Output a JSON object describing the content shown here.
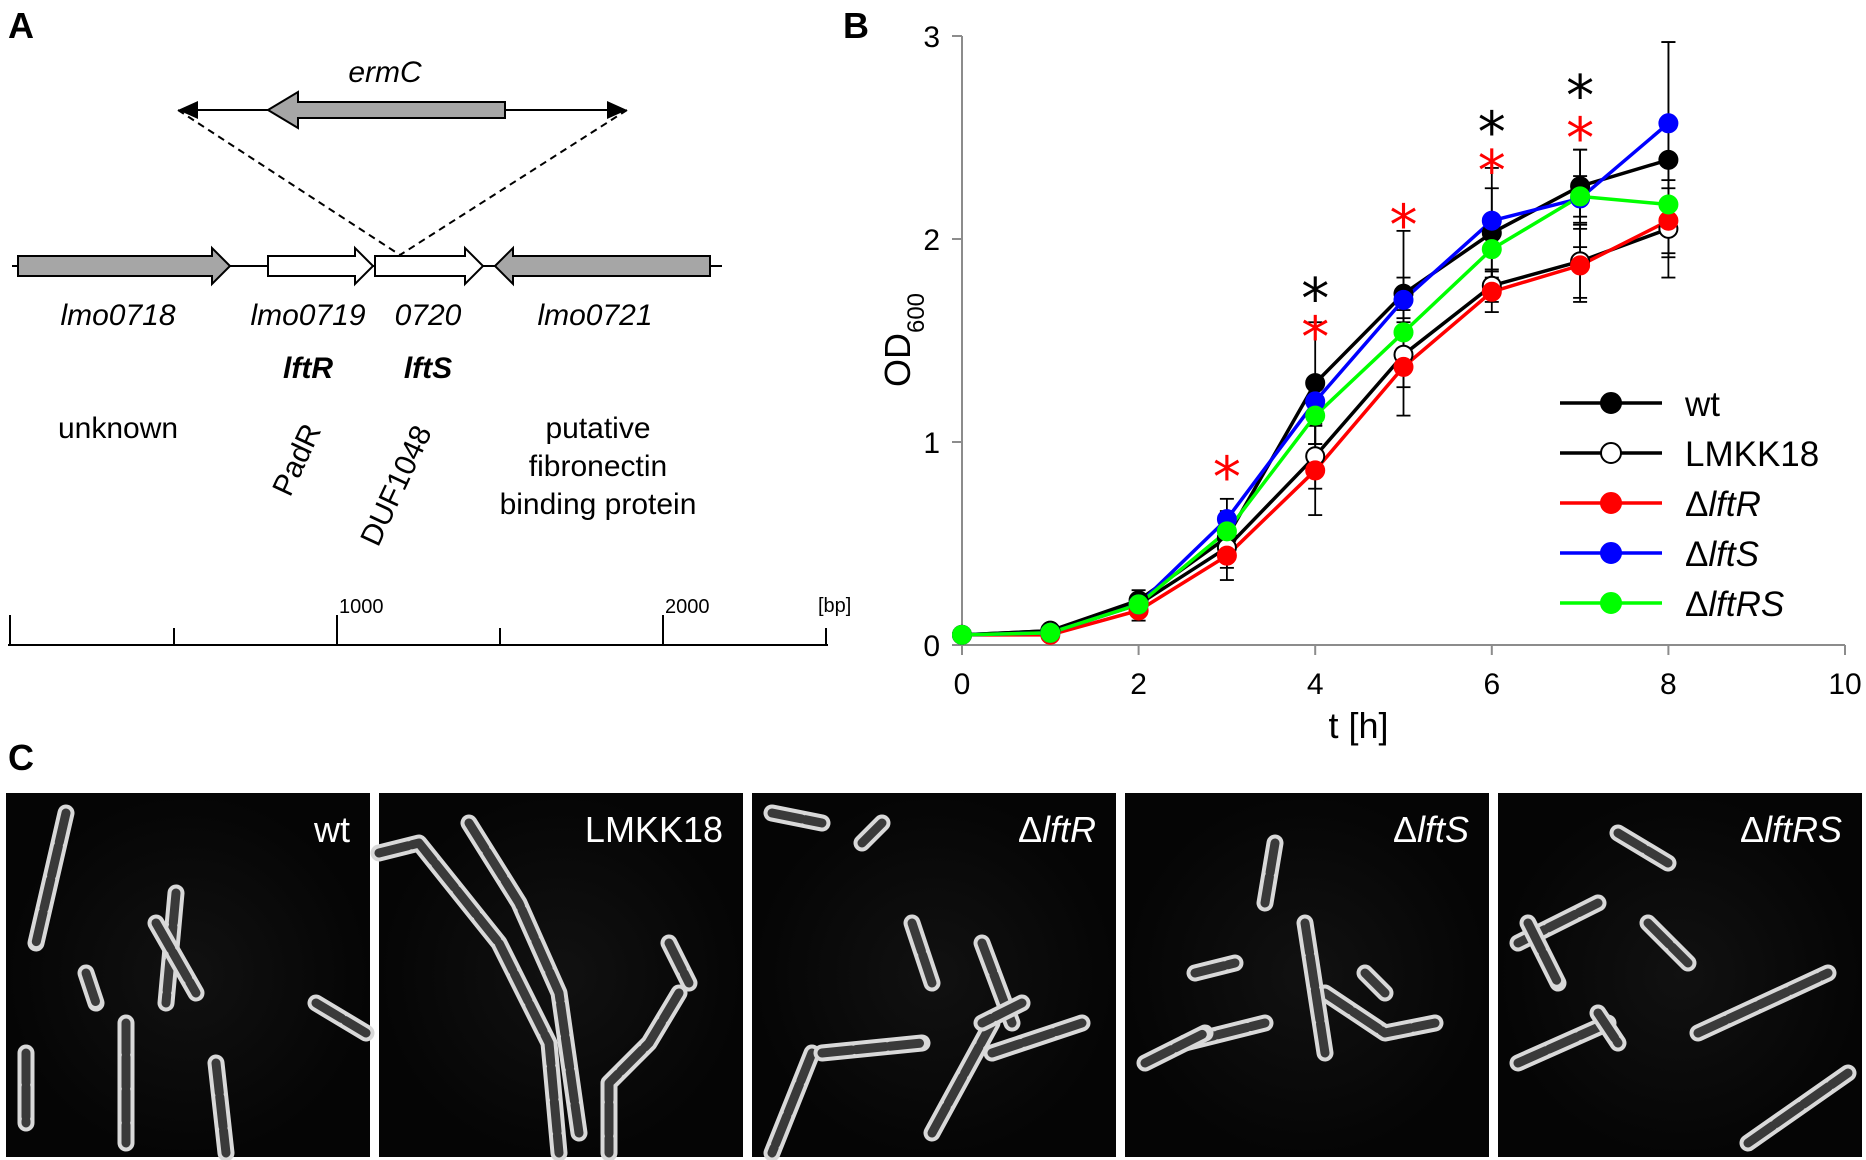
{
  "panels": {
    "a": {
      "letter": "A",
      "insert_gene": "ermC",
      "genes": [
        {
          "name": "lmo0718",
          "alias": "",
          "desc": "unknown"
        },
        {
          "name": "lmo0719",
          "alias": "lftR",
          "desc": "PadR"
        },
        {
          "name": "0720",
          "alias": "lftS",
          "desc": "DUF1048"
        },
        {
          "name": "lmo0721",
          "alias": "",
          "desc_lines": [
            "putative",
            "fibronectin",
            "binding protein"
          ]
        }
      ],
      "scale": {
        "ticks": [
          "1000",
          "2000"
        ],
        "unit": "[bp]"
      }
    },
    "b": {
      "letter": "B"
    },
    "c": {
      "letter": "C",
      "images": [
        {
          "label_prefix": "",
          "label_italic": "wt",
          "italic": false
        },
        {
          "label_prefix": "",
          "label_italic": "LMKK18",
          "italic": false
        },
        {
          "label_prefix": "Δ",
          "label_italic": "lftR",
          "italic": true
        },
        {
          "label_prefix": "Δ",
          "label_italic": "lftS",
          "italic": true
        },
        {
          "label_prefix": "Δ",
          "label_italic": "lftRS",
          "italic": true
        }
      ]
    }
  },
  "chart_data": {
    "type": "line",
    "xlabel": "t [h]",
    "ylabel_main": "OD",
    "ylabel_sub": "600",
    "xlim": [
      0,
      10
    ],
    "ylim": [
      0,
      3
    ],
    "xticks": [
      "0",
      "2",
      "4",
      "6",
      "8",
      "10"
    ],
    "yticks": [
      "0",
      "1",
      "2",
      "3"
    ],
    "legend_position": "bottom-right",
    "series": [
      {
        "name": "wt",
        "prefix": "",
        "italic": false,
        "color": "#000000",
        "fill": "#000000",
        "x": [
          0,
          1,
          2,
          3,
          4,
          5,
          6,
          7,
          8
        ],
        "y": [
          0.05,
          0.07,
          0.22,
          0.53,
          1.29,
          1.73,
          2.03,
          2.26,
          2.39
        ],
        "err": [
          0.02,
          0.02,
          0.05,
          0.12,
          0.3,
          0.08,
          0.32,
          0.18,
          0.58
        ]
      },
      {
        "name": "LMKK18",
        "prefix": "",
        "italic": false,
        "color": "#000000",
        "fill": "#ffffff",
        "x": [
          0,
          1,
          2,
          3,
          4,
          5,
          6,
          7,
          8
        ],
        "y": [
          0.05,
          0.07,
          0.2,
          0.48,
          0.93,
          1.43,
          1.77,
          1.89,
          2.05
        ],
        "err": [
          0.02,
          0.02,
          0.04,
          0.1,
          0.16,
          0.16,
          0.08,
          0.18,
          0.14
        ]
      },
      {
        "name": "lftR",
        "prefix": "Δ",
        "italic": true,
        "color": "#ff0000",
        "fill": "#ff0000",
        "x": [
          0,
          1,
          2,
          3,
          4,
          5,
          6,
          7,
          8
        ],
        "y": [
          0.05,
          0.05,
          0.17,
          0.44,
          0.86,
          1.37,
          1.74,
          1.87,
          2.09
        ],
        "err": [
          0.02,
          0.02,
          0.05,
          0.12,
          0.22,
          0.24,
          0.1,
          0.18,
          0.16
        ]
      },
      {
        "name": "lftS",
        "prefix": "Δ",
        "italic": true,
        "color": "#0000ff",
        "fill": "#0000ff",
        "x": [
          0,
          1,
          2,
          3,
          4,
          5,
          6,
          7,
          8
        ],
        "y": [
          0.05,
          0.06,
          0.2,
          0.62,
          1.2,
          1.7,
          2.09,
          2.2,
          2.57
        ],
        "err": [
          0.02,
          0.02,
          0.04,
          0.1,
          0.12,
          0.34,
          0.16,
          0.24,
          0.4
        ]
      },
      {
        "name": "lftRS",
        "prefix": "Δ",
        "italic": true,
        "color": "#00ff00",
        "fill": "#00ff00",
        "x": [
          0,
          1,
          2,
          3,
          4,
          5,
          6,
          7,
          8
        ],
        "y": [
          0.05,
          0.06,
          0.2,
          0.56,
          1.13,
          1.54,
          1.95,
          2.21,
          2.17
        ],
        "err": [
          0.02,
          0.02,
          0.04,
          0.1,
          0.14,
          0.16,
          0.14,
          0.1,
          0.12
        ]
      }
    ],
    "significance": [
      {
        "x": 3,
        "y": 0.86,
        "color": "#ff0000",
        "symbol": "*"
      },
      {
        "x": 4,
        "y": 1.74,
        "color": "#000000",
        "symbol": "*"
      },
      {
        "x": 4,
        "y": 1.55,
        "color": "#ff0000",
        "symbol": "*"
      },
      {
        "x": 5,
        "y": 2.1,
        "color": "#ff0000",
        "symbol": "*"
      },
      {
        "x": 6,
        "y": 2.56,
        "color": "#000000",
        "symbol": "*"
      },
      {
        "x": 6,
        "y": 2.37,
        "color": "#ff0000",
        "symbol": "*"
      },
      {
        "x": 7,
        "y": 2.74,
        "color": "#000000",
        "symbol": "*"
      },
      {
        "x": 7,
        "y": 2.53,
        "color": "#ff0000",
        "symbol": "*"
      }
    ]
  }
}
